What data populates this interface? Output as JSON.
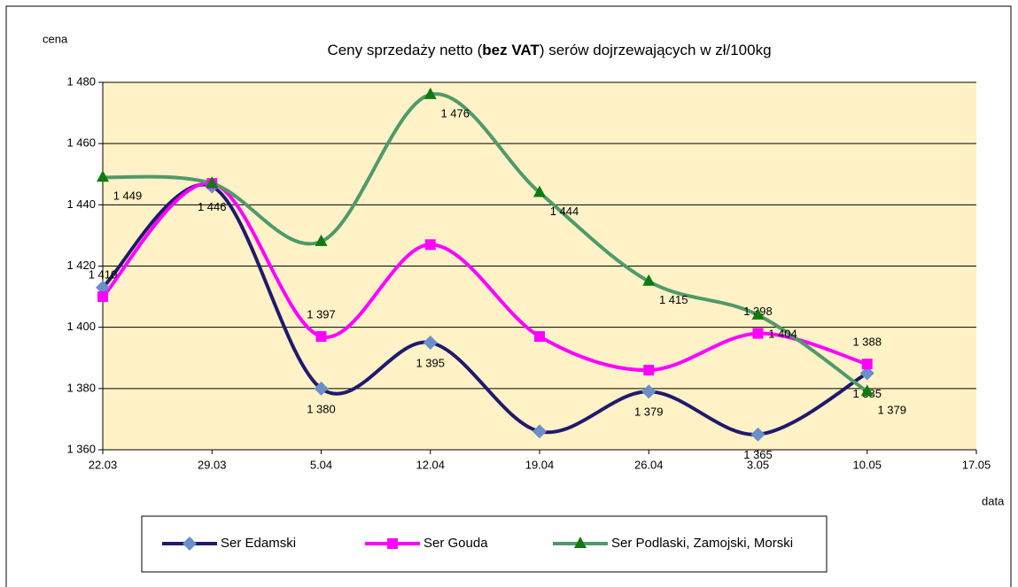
{
  "chart_data": {
    "type": "line",
    "title": [
      "Ceny sprzedaży netto (",
      "bez VAT",
      ") serów dojrzewających  w zł/100kg"
    ],
    "y_label": "cena",
    "x_label": "data",
    "categories": [
      "22.03",
      "29.03",
      "5.04",
      "12.04",
      "19.04",
      "26.04",
      "3.05",
      "10.05",
      "17.05"
    ],
    "ylim": [
      1360,
      1480
    ],
    "yticks": [
      {
        "value": 1360,
        "label": "1 360"
      },
      {
        "value": 1380,
        "label": "1 380"
      },
      {
        "value": 1400,
        "label": "1 400"
      },
      {
        "value": 1420,
        "label": "1 420"
      },
      {
        "value": 1440,
        "label": "1 440"
      },
      {
        "value": 1460,
        "label": "1 460"
      },
      {
        "value": 1480,
        "label": "1 480"
      }
    ],
    "grid": true,
    "legend": "bottom",
    "series": [
      {
        "name": "Ser Edamski",
        "color": "#1f1a6e",
        "marker": "diamond",
        "marker_color": "#6a8fcb",
        "values": [
          1413,
          1446,
          1380,
          1395,
          1366,
          1379,
          1365,
          1385,
          null
        ],
        "value_labels": [
          null,
          "1 446",
          "1 380",
          "1 395",
          null,
          "1 379",
          "1 365",
          "1 385",
          null
        ]
      },
      {
        "name": "Ser Gouda",
        "color": "#ff00ff",
        "marker": "square",
        "marker_color": "#ff00ff",
        "values": [
          1410,
          1447,
          1397,
          1427,
          1397,
          1386,
          1398,
          1388,
          null
        ],
        "value_labels": [
          "1 410",
          null,
          "1 397",
          null,
          null,
          null,
          "1 398",
          "1 388",
          null
        ]
      },
      {
        "name": "Ser Podlaski, Zamojski, Morski",
        "color": "#4e9a6a",
        "marker": "triangle",
        "marker_color": "#0f7a0f",
        "values": [
          1449,
          1447,
          1428,
          1476,
          1444,
          1415,
          1404,
          1379,
          null
        ],
        "value_labels": [
          "1 449",
          null,
          null,
          "1 476",
          "1 444",
          "1 415",
          "1 404",
          "1 379",
          null
        ]
      }
    ]
  }
}
